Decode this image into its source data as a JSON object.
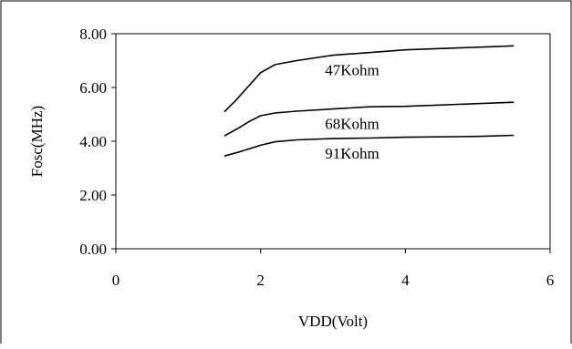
{
  "chart_data": {
    "type": "line",
    "title": "",
    "xlabel": "VDD(Volt)",
    "ylabel": "Fosc(MHz)",
    "xlim": [
      0,
      6
    ],
    "ylim": [
      0,
      8
    ],
    "x_ticks": [
      "0",
      "2",
      "4",
      "6"
    ],
    "y_ticks": [
      "0.00",
      "2.00",
      "4.00",
      "6.00",
      "8.00"
    ],
    "grid": false,
    "legend": "none",
    "line_color": "#000000",
    "series": [
      {
        "name": "47Kohm",
        "x": [
          1.5,
          1.65,
          1.8,
          2.0,
          2.2,
          2.5,
          3.0,
          3.5,
          4.0,
          5.0,
          5.5
        ],
        "y": [
          5.1,
          5.5,
          5.95,
          6.55,
          6.85,
          7.0,
          7.2,
          7.3,
          7.4,
          7.5,
          7.55
        ]
      },
      {
        "name": "68Kohm",
        "x": [
          1.5,
          1.7,
          1.85,
          2.0,
          2.2,
          2.5,
          3.0,
          3.5,
          4.0,
          5.0,
          5.5
        ],
        "y": [
          4.2,
          4.5,
          4.75,
          4.95,
          5.05,
          5.12,
          5.2,
          5.28,
          5.3,
          5.4,
          5.45
        ]
      },
      {
        "name": "91Kohm",
        "x": [
          1.5,
          1.7,
          2.0,
          2.2,
          2.5,
          3.0,
          3.5,
          4.0,
          5.0,
          5.5
        ],
        "y": [
          3.45,
          3.6,
          3.85,
          3.98,
          4.05,
          4.1,
          4.12,
          4.15,
          4.18,
          4.22
        ]
      }
    ]
  }
}
